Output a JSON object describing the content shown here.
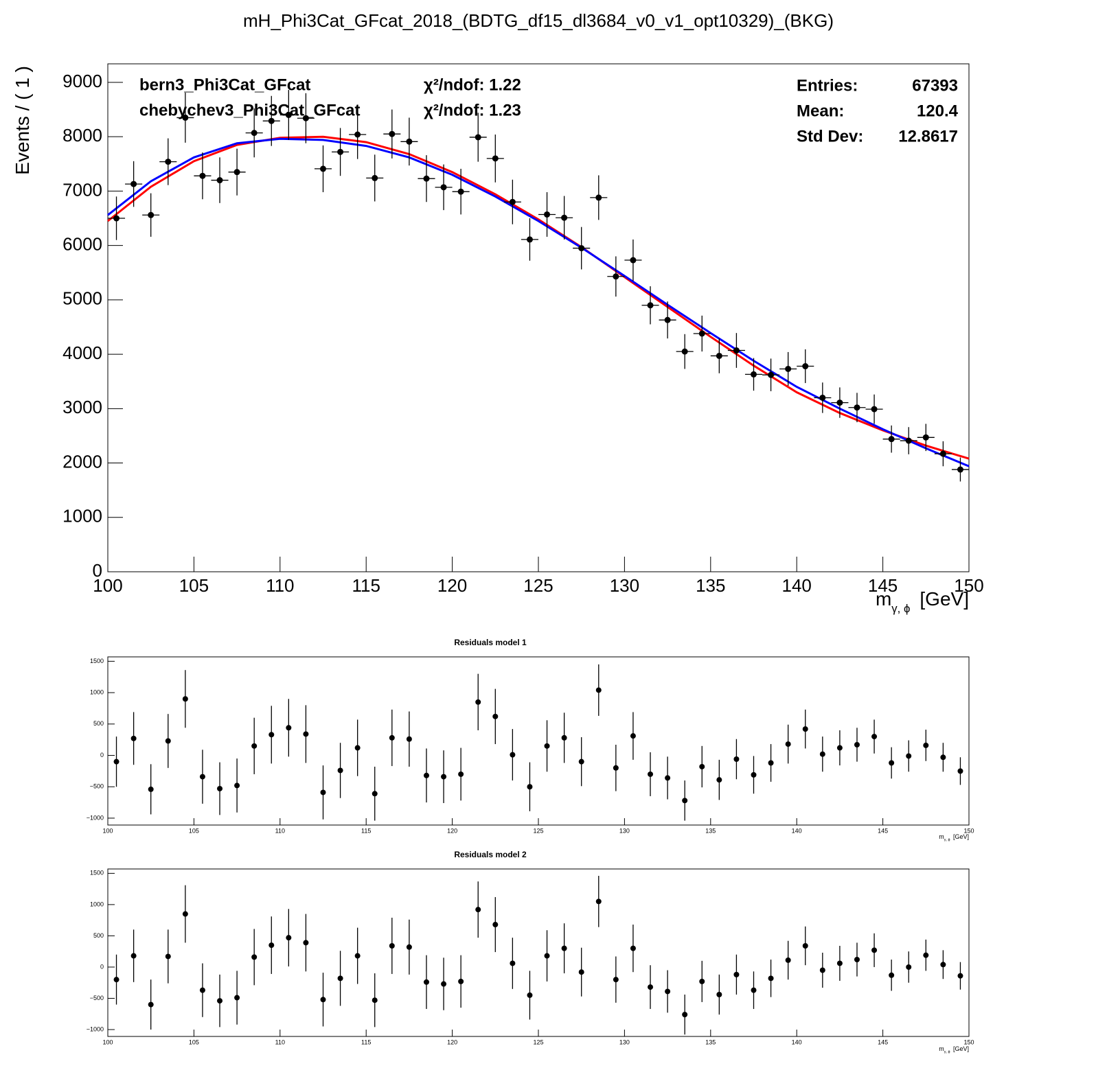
{
  "chart_data": [
    {
      "type": "errorbar",
      "title": "mH_Phi3Cat_GFcat_2018_(BDTG_df15_dl3684_v0_v1_opt10329)_(BKG)",
      "y_label": "Events / ( 1 )",
      "x_label": {
        "main": "m",
        "sub": "γ, ϕ",
        "unit": "[GeV]"
      },
      "xlim": [
        100,
        150
      ],
      "ylim": [
        0,
        9340
      ],
      "xticks": [
        100,
        105,
        110,
        115,
        120,
        125,
        130,
        135,
        140,
        145,
        150
      ],
      "yticks": [
        0,
        1000,
        2000,
        3000,
        4000,
        5000,
        6000,
        7000,
        8000,
        9000
      ],
      "xerr": 0.5,
      "color": "#000000",
      "x": [
        100.5,
        101.5,
        102.5,
        103.5,
        104.5,
        105.5,
        106.5,
        107.5,
        108.5,
        109.5,
        110.5,
        111.5,
        112.5,
        113.5,
        114.5,
        115.5,
        116.5,
        117.5,
        118.5,
        119.5,
        120.5,
        121.5,
        122.5,
        123.5,
        124.5,
        125.5,
        126.5,
        127.5,
        128.5,
        129.5,
        130.5,
        131.5,
        132.5,
        133.5,
        134.5,
        135.5,
        136.5,
        137.5,
        138.5,
        139.5,
        140.5,
        141.5,
        142.5,
        143.5,
        144.5,
        145.5,
        146.5,
        147.5,
        148.5,
        149.5
      ],
      "values": [
        6500,
        7130,
        6560,
        7540,
        8350,
        7280,
        7200,
        7350,
        8070,
        8290,
        8400,
        8340,
        7410,
        7720,
        8040,
        7240,
        8050,
        7910,
        7230,
        7070,
        6990,
        7990,
        7600,
        6800,
        6110,
        6570,
        6510,
        5950,
        6880,
        5430,
        5730,
        4900,
        4630,
        4050,
        4380,
        3970,
        4070,
        3630,
        3620,
        3730,
        3780,
        3200,
        3110,
        3020,
        2990,
        2440,
        2410,
        2470,
        2170,
        1880
      ],
      "errors": [
        400,
        420,
        400,
        430,
        460,
        430,
        420,
        430,
        450,
        460,
        460,
        460,
        430,
        440,
        450,
        430,
        450,
        440,
        430,
        420,
        420,
        450,
        440,
        410,
        390,
        410,
        400,
        390,
        410,
        370,
        380,
        350,
        340,
        320,
        330,
        320,
        320,
        300,
        300,
        310,
        310,
        280,
        280,
        270,
        270,
        250,
        250,
        250,
        230,
        220
      ],
      "curves": [
        {
          "name": "bern3_Phi3Cat_GFcat",
          "fit_label": "χ²/ndof: 1.22",
          "color": "#ff0000",
          "x": [
            100,
            102.5,
            105,
            107.5,
            110,
            112.5,
            115,
            117.5,
            120,
            122.5,
            125,
            127.5,
            130,
            132.5,
            135,
            137.5,
            140,
            142.5,
            145,
            147.5,
            150
          ],
          "values": [
            6450,
            7080,
            7550,
            7850,
            7980,
            8000,
            7900,
            7680,
            7350,
            6940,
            6480,
            5970,
            5420,
            4870,
            4320,
            3790,
            3300,
            2920,
            2600,
            2320,
            2080
          ]
        },
        {
          "name": "chebychev3_Phi3Cat_GFcat",
          "fit_label": "χ²/ndof: 1.23",
          "color": "#0000ff",
          "x": [
            100,
            102.5,
            105,
            107.5,
            110,
            112.5,
            115,
            117.5,
            120,
            122.5,
            125,
            127.5,
            130,
            132.5,
            135,
            137.5,
            140,
            142.5,
            145,
            147.5,
            150
          ],
          "values": [
            6560,
            7180,
            7620,
            7880,
            7960,
            7940,
            7830,
            7620,
            7300,
            6900,
            6450,
            5960,
            5440,
            4910,
            4390,
            3880,
            3400,
            3000,
            2620,
            2270,
            1940
          ]
        }
      ],
      "stats": [
        {
          "label": "Entries:",
          "value": 67393
        },
        {
          "label": "Mean:",
          "value": 120.4
        },
        {
          "label": "Std Dev:",
          "value": 12.8617
        }
      ]
    },
    {
      "type": "errorbar",
      "title": "Residuals model 1",
      "x_label": {
        "main": "m",
        "sub": "γ, ϕ",
        "unit": "[GeV]"
      },
      "xlim": [
        100,
        150
      ],
      "ylim": [
        -1110,
        1570
      ],
      "xticks": [
        100,
        105,
        110,
        115,
        120,
        125,
        130,
        135,
        140,
        145,
        150
      ],
      "yticks": [
        {
          "value": -1000,
          "label": "−1000"
        },
        {
          "value": -500,
          "label": "−500"
        },
        0,
        500,
        1000,
        1500
      ],
      "xerr": 0.5,
      "color": "#000000",
      "x": [
        100.5,
        101.5,
        102.5,
        103.5,
        104.5,
        105.5,
        106.5,
        107.5,
        108.5,
        109.5,
        110.5,
        111.5,
        112.5,
        113.5,
        114.5,
        115.5,
        116.5,
        117.5,
        118.5,
        119.5,
        120.5,
        121.5,
        122.5,
        123.5,
        124.5,
        125.5,
        126.5,
        127.5,
        128.5,
        129.5,
        130.5,
        131.5,
        132.5,
        133.5,
        134.5,
        135.5,
        136.5,
        137.5,
        138.5,
        139.5,
        140.5,
        141.5,
        142.5,
        143.5,
        144.5,
        145.5,
        146.5,
        147.5,
        148.5,
        149.5
      ],
      "values": [
        -100,
        270,
        -540,
        230,
        900,
        -340,
        -530,
        -480,
        150,
        330,
        440,
        340,
        -590,
        -240,
        120,
        -610,
        280,
        260,
        -320,
        -340,
        -300,
        850,
        620,
        10,
        -500,
        150,
        280,
        -100,
        1040,
        -200,
        310,
        -300,
        -360,
        -720,
        -180,
        -390,
        -60,
        -310,
        -120,
        180,
        420,
        20,
        120,
        170,
        300,
        -120,
        -10,
        160,
        -30,
        -250
      ],
      "errors": [
        400,
        420,
        400,
        430,
        460,
        430,
        420,
        430,
        450,
        460,
        460,
        460,
        430,
        440,
        450,
        430,
        450,
        440,
        430,
        420,
        420,
        450,
        440,
        410,
        390,
        410,
        400,
        390,
        410,
        370,
        380,
        350,
        340,
        320,
        330,
        320,
        320,
        300,
        300,
        310,
        310,
        280,
        280,
        270,
        270,
        250,
        250,
        250,
        230,
        220
      ]
    },
    {
      "type": "errorbar",
      "title": "Residuals model 2",
      "x_label": {
        "main": "m",
        "sub": "γ, ϕ",
        "unit": "[GeV]"
      },
      "xlim": [
        100,
        150
      ],
      "ylim": [
        -1110,
        1570
      ],
      "xticks": [
        100,
        105,
        110,
        115,
        120,
        125,
        130,
        135,
        140,
        145,
        150
      ],
      "yticks": [
        {
          "value": -1000,
          "label": "−1000"
        },
        {
          "value": -500,
          "label": "−500"
        },
        0,
        500,
        1000,
        1500
      ],
      "xerr": 0.5,
      "color": "#000000",
      "x": [
        100.5,
        101.5,
        102.5,
        103.5,
        104.5,
        105.5,
        106.5,
        107.5,
        108.5,
        109.5,
        110.5,
        111.5,
        112.5,
        113.5,
        114.5,
        115.5,
        116.5,
        117.5,
        118.5,
        119.5,
        120.5,
        121.5,
        122.5,
        123.5,
        124.5,
        125.5,
        126.5,
        127.5,
        128.5,
        129.5,
        130.5,
        131.5,
        132.5,
        133.5,
        134.5,
        135.5,
        136.5,
        137.5,
        138.5,
        139.5,
        140.5,
        141.5,
        142.5,
        143.5,
        144.5,
        145.5,
        146.5,
        147.5,
        148.5,
        149.5
      ],
      "values": [
        -200,
        180,
        -600,
        170,
        850,
        -370,
        -540,
        -490,
        160,
        350,
        470,
        390,
        -520,
        -180,
        180,
        -530,
        340,
        320,
        -240,
        -270,
        -230,
        920,
        680,
        60,
        -450,
        180,
        300,
        -80,
        1050,
        -200,
        300,
        -320,
        -390,
        -760,
        -230,
        -440,
        -120,
        -370,
        -180,
        110,
        340,
        -50,
        60,
        120,
        270,
        -130,
        0,
        190,
        40,
        -140
      ],
      "errors": [
        400,
        420,
        400,
        430,
        460,
        430,
        420,
        430,
        450,
        460,
        460,
        460,
        430,
        440,
        450,
        430,
        450,
        440,
        430,
        420,
        420,
        450,
        440,
        410,
        390,
        410,
        400,
        390,
        410,
        370,
        380,
        350,
        340,
        320,
        330,
        320,
        320,
        300,
        300,
        310,
        310,
        280,
        280,
        270,
        270,
        250,
        250,
        250,
        230,
        220
      ]
    }
  ]
}
